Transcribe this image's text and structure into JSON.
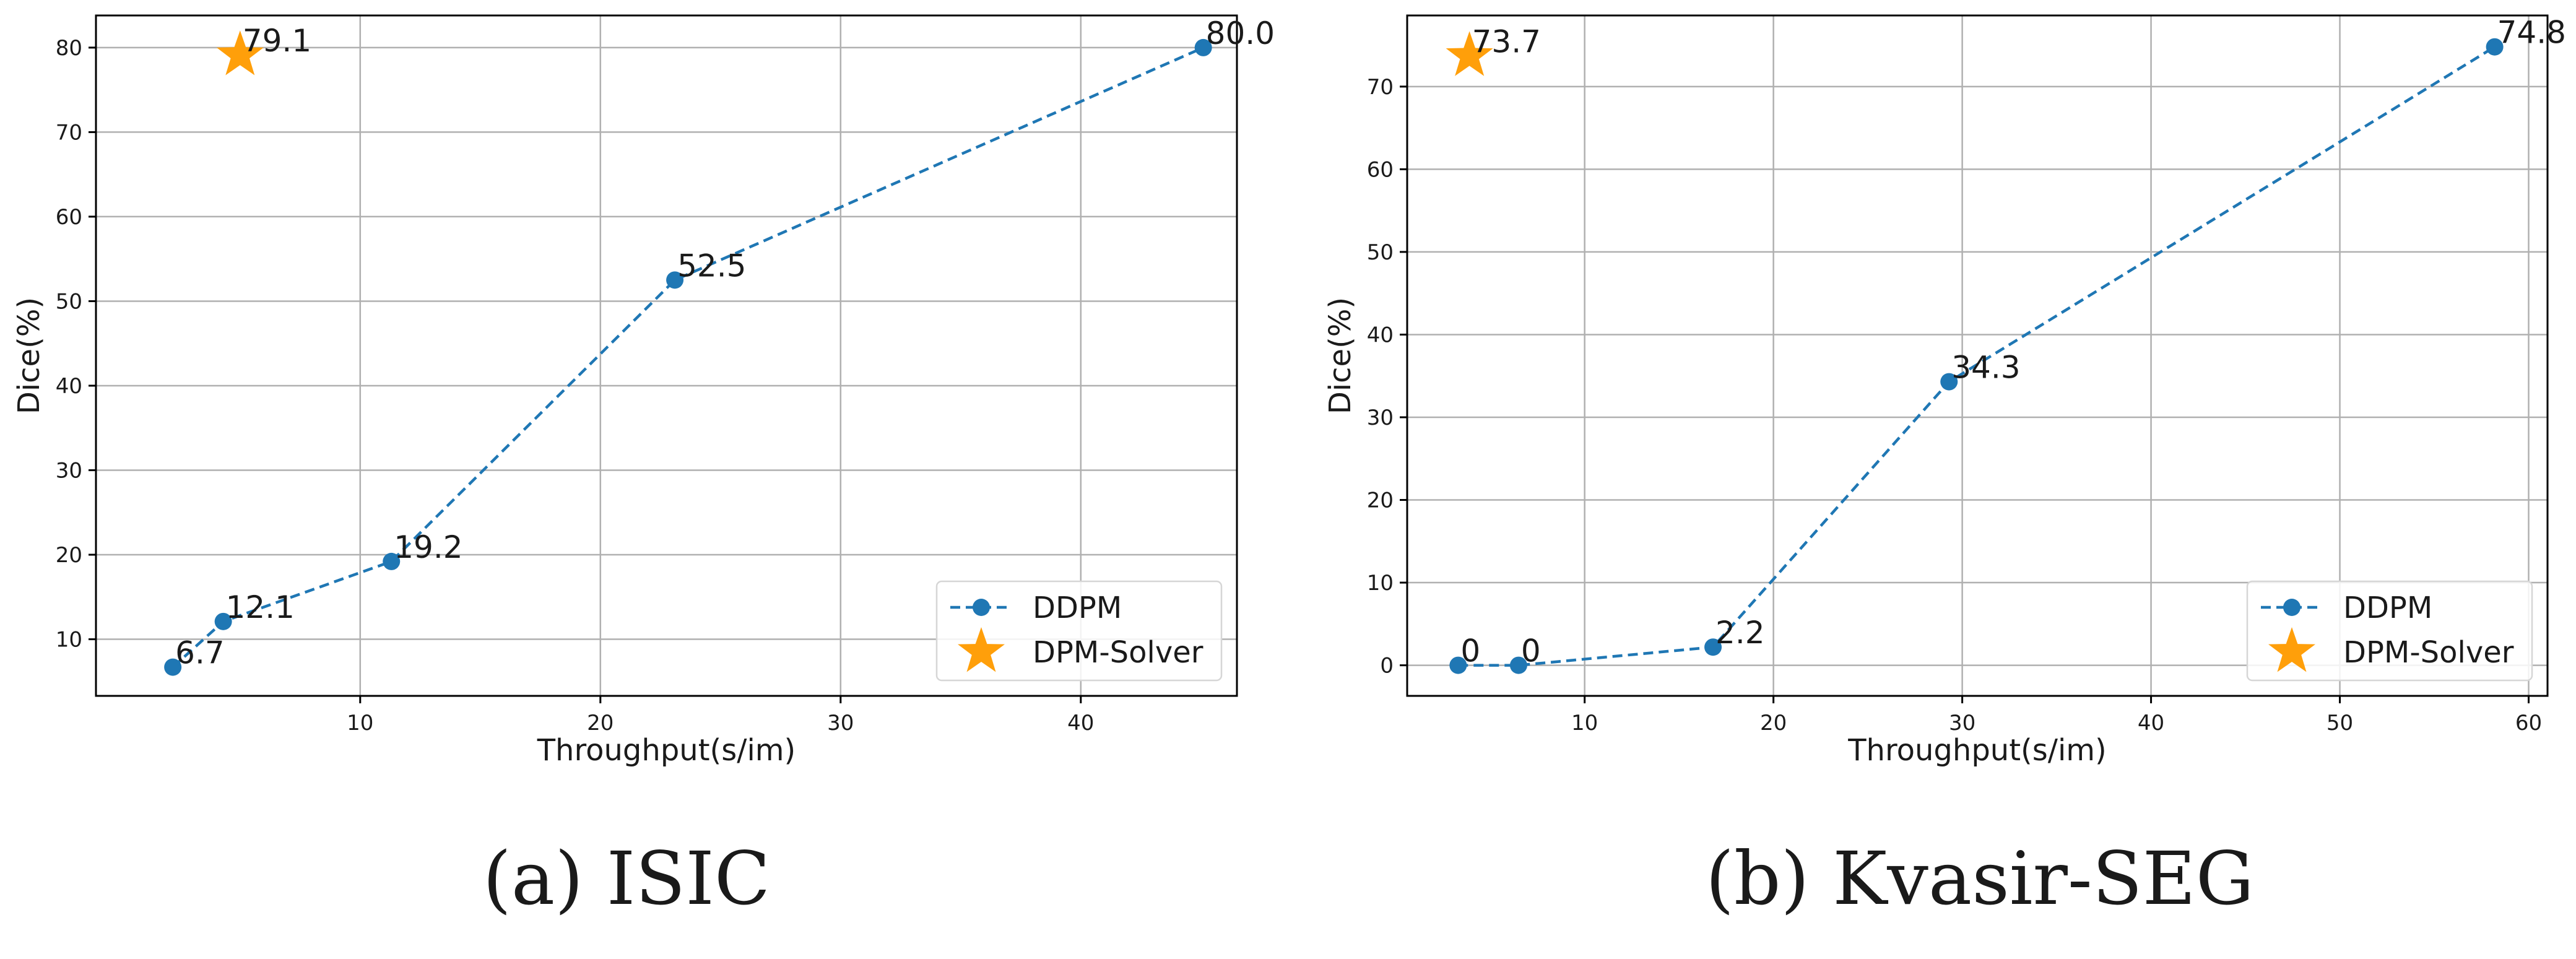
{
  "colors": {
    "ddpm": "#1f77b4",
    "dpm_solver": "#ff9f0a",
    "grid": "#b0b0b0",
    "axis": "#000000",
    "text": "#1a1a1a"
  },
  "chart_data": [
    {
      "type": "line",
      "caption": "(a) ISIC",
      "xlabel": "Throughput(s/im)",
      "ylabel": "Dice(%)",
      "xlim": [
        -1,
        46.5
      ],
      "ylim": [
        3.3,
        83.8
      ],
      "xticks": [
        10,
        20,
        30,
        40
      ],
      "yticks": [
        10,
        20,
        30,
        40,
        50,
        60,
        70,
        80
      ],
      "grid": true,
      "legend_position": "bottom-right",
      "series": [
        {
          "name": "DDPM",
          "marker": "circle",
          "linestyle": "dashed",
          "points": [
            {
              "x": 2.2,
              "y": 6.7,
              "label": "6.7"
            },
            {
              "x": 4.3,
              "y": 12.1,
              "label": "12.1"
            },
            {
              "x": 11.3,
              "y": 19.2,
              "label": "19.2"
            },
            {
              "x": 23.1,
              "y": 52.5,
              "label": "52.5"
            },
            {
              "x": 45.1,
              "y": 80.0,
              "label": "80.0"
            }
          ]
        },
        {
          "name": "DPM-Solver",
          "marker": "star",
          "linestyle": "none",
          "points": [
            {
              "x": 5.0,
              "y": 79.1,
              "label": "79.1"
            }
          ]
        }
      ]
    },
    {
      "type": "line",
      "caption": "(b) Kvasir-SEG",
      "xlabel": "Throughput(s/im)",
      "ylabel": "Dice(%)",
      "xlim": [
        0.6,
        61.0
      ],
      "ylim": [
        -3.7,
        78.6
      ],
      "xticks": [
        10,
        20,
        30,
        40,
        50,
        60
      ],
      "yticks": [
        0,
        10,
        20,
        30,
        40,
        50,
        60,
        70
      ],
      "grid": true,
      "legend_position": "bottom-right",
      "series": [
        {
          "name": "DDPM",
          "marker": "circle",
          "linestyle": "dashed",
          "points": [
            {
              "x": 3.3,
              "y": 0,
              "label": "0"
            },
            {
              "x": 6.5,
              "y": 0,
              "label": "0"
            },
            {
              "x": 16.8,
              "y": 2.2,
              "label": "2.2"
            },
            {
              "x": 29.3,
              "y": 34.3,
              "label": "34.3"
            },
            {
              "x": 58.2,
              "y": 74.8,
              "label": "74.8"
            }
          ]
        },
        {
          "name": "DPM-Solver",
          "marker": "star",
          "linestyle": "none",
          "points": [
            {
              "x": 3.9,
              "y": 73.7,
              "label": "73.7"
            }
          ]
        }
      ]
    }
  ]
}
